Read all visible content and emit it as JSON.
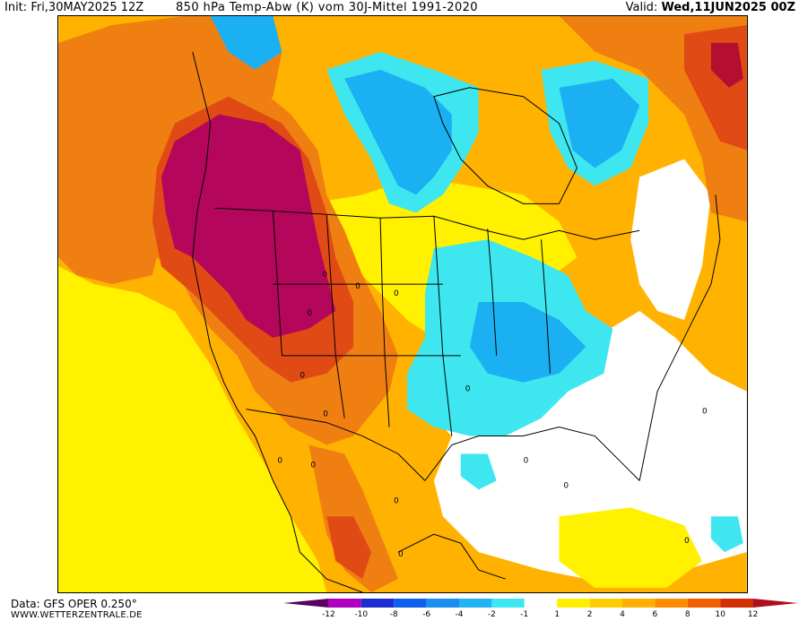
{
  "header": {
    "init_label": "Init:",
    "init_value": "Fri,30MAY2025 12Z",
    "title": "850 hPa Temp-Abw (K) vom 30J-Mittel 1991-2020",
    "valid_label": "Valid:",
    "valid_value": "Wed,11JUN2025 00Z"
  },
  "footer": {
    "data_source": "Data: GFS OPER 0.250°",
    "website": "WWW.WETTERZENTRALE.DE"
  },
  "legend": {
    "tick_labels": [
      "-12",
      "-10",
      "-8",
      "-6",
      "-4",
      "-2",
      "-1",
      "1",
      "2",
      "4",
      "6",
      "8",
      "10",
      "12"
    ],
    "colors": [
      "#5a0060",
      "#b000c0",
      "#1e2dd2",
      "#1060ee",
      "#1b8ff0",
      "#22b4f2",
      "#3ee6f0",
      "#ffffff",
      "#fff000",
      "#ffce00",
      "#ffb000",
      "#ff8c00",
      "#f06000",
      "#d23000",
      "#b00e20"
    ]
  },
  "map": {
    "region": "North America",
    "contour_labels": [
      "0",
      "0",
      "0",
      "0",
      "0",
      "0",
      "0",
      "0",
      "0",
      "0",
      "0",
      "0",
      "0",
      "0",
      "0"
    ],
    "colors": {
      "anomaly_pos_max": "#b4065a",
      "anomaly_pos_high": "#e04b15",
      "anomaly_pos_mid": "#f07f12",
      "anomaly_pos_low": "#ffb300",
      "anomaly_pos_min": "#fff100",
      "near_zero": "#ffffff",
      "anomaly_neg_low": "#3ee6f0",
      "anomaly_neg_mid": "#1bb0f2"
    }
  }
}
